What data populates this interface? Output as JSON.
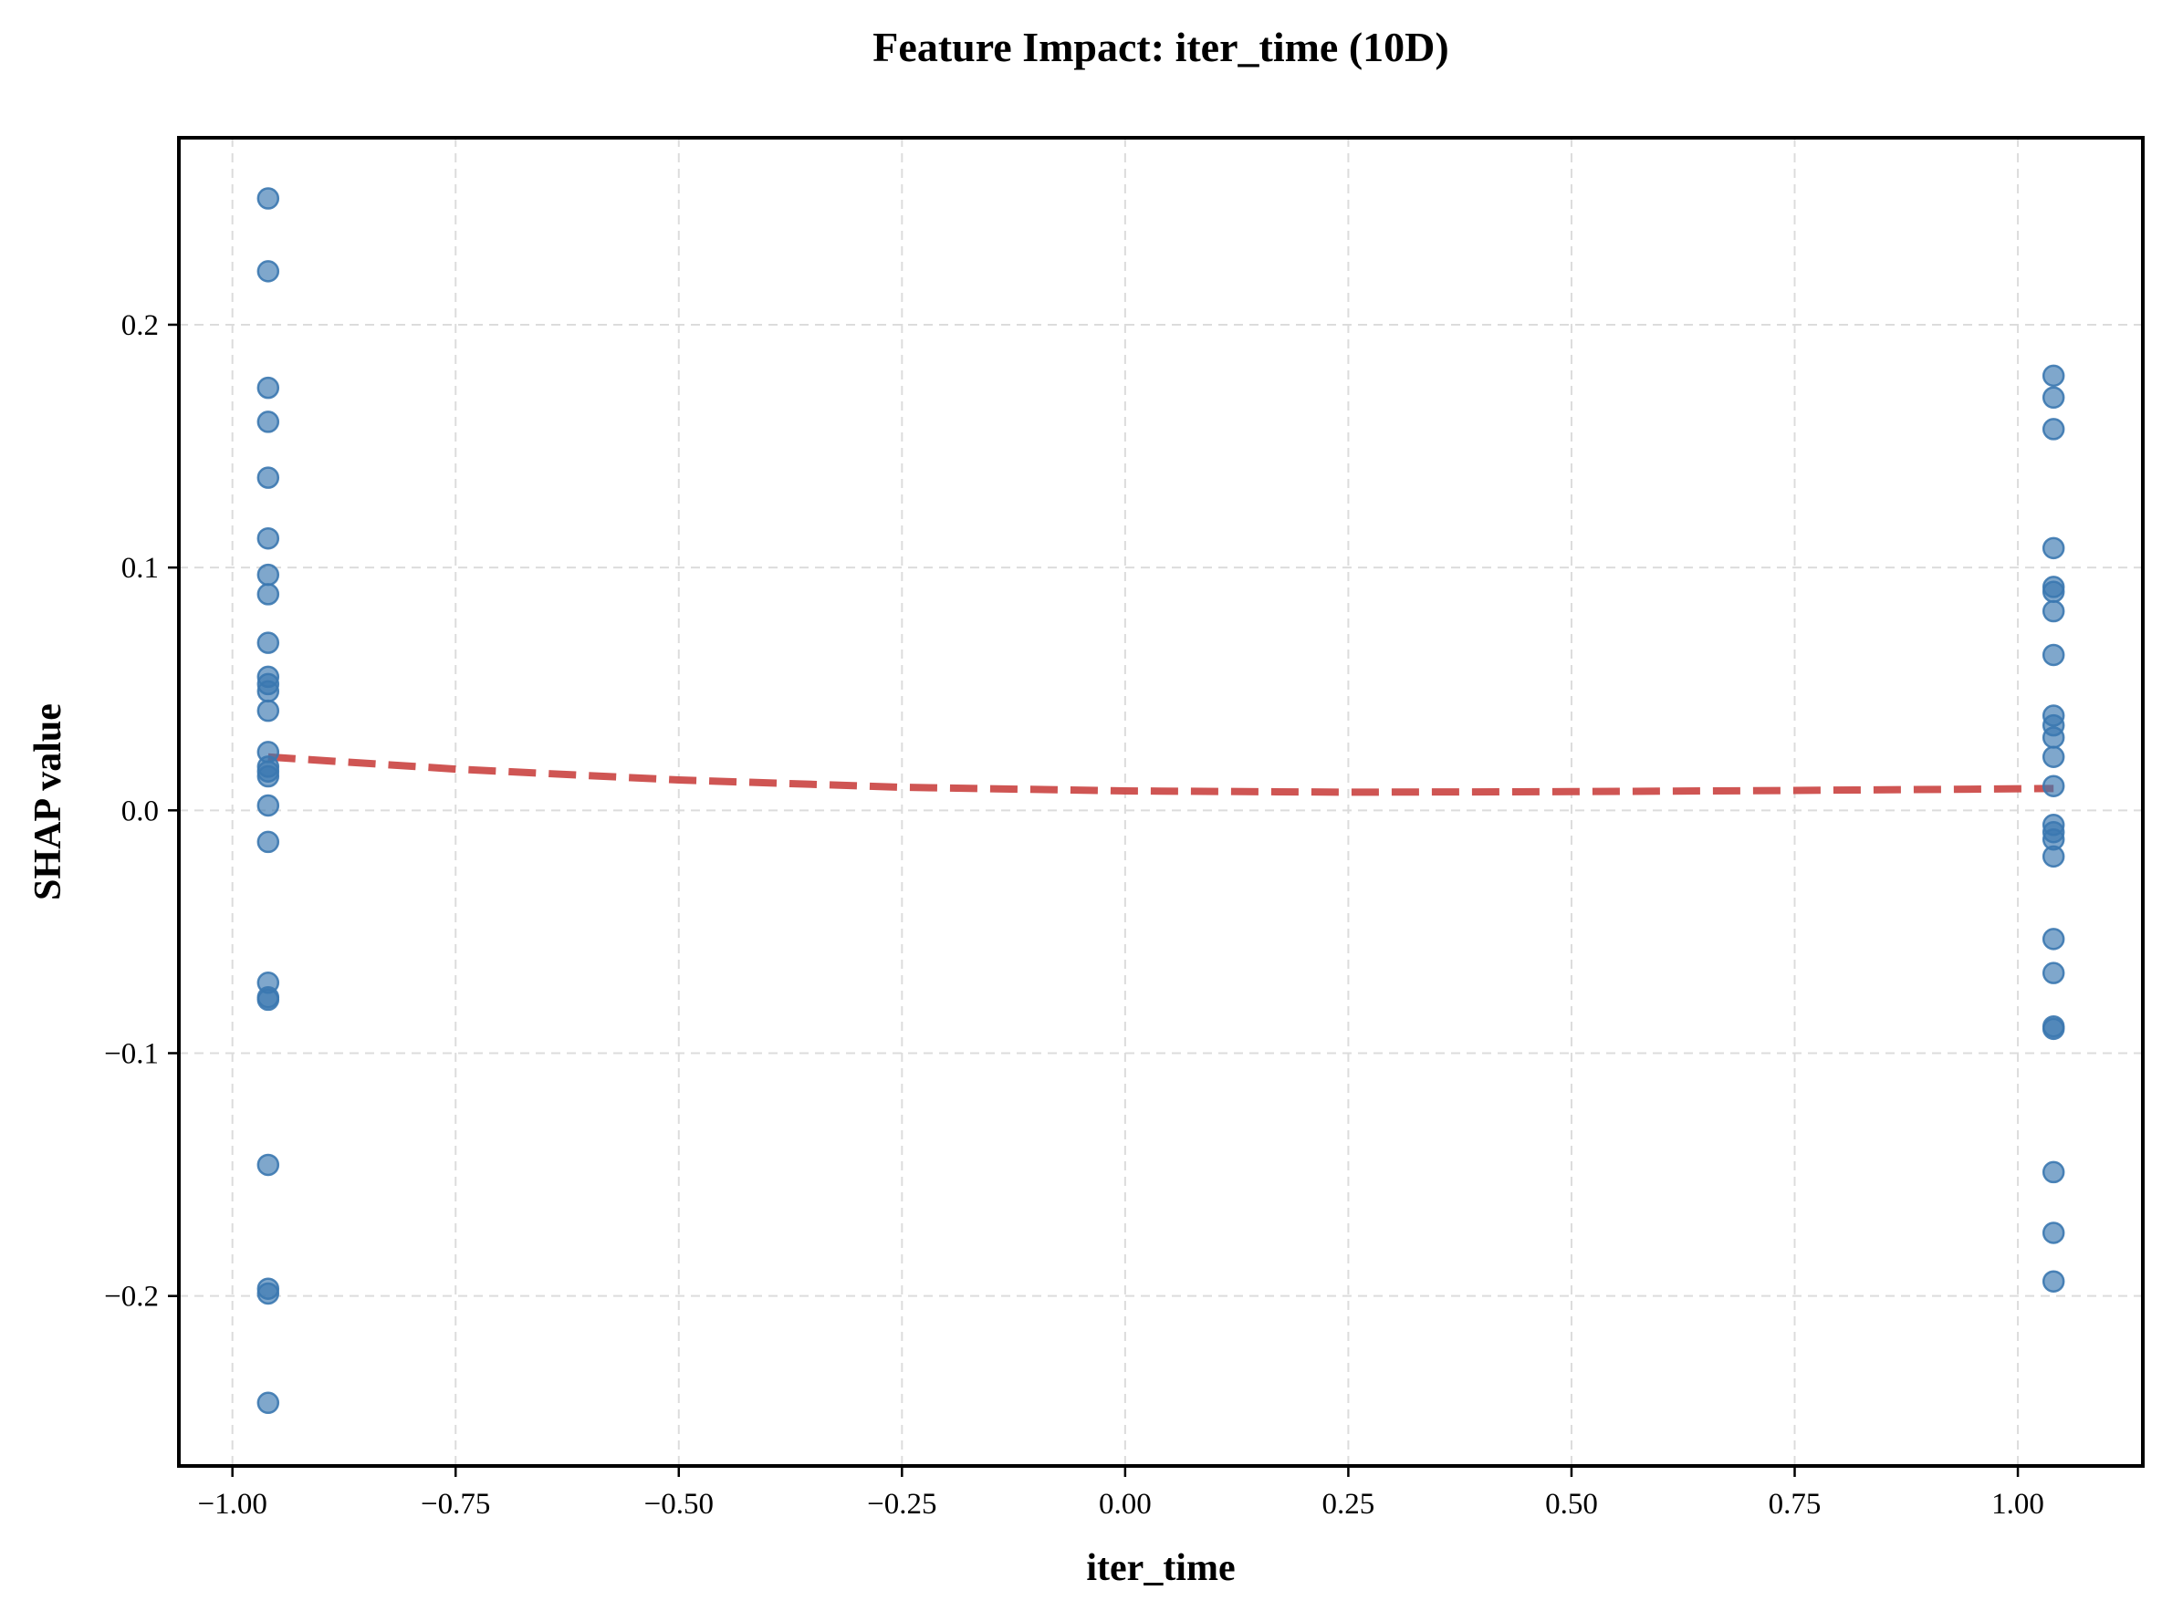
{
  "chart_data": {
    "type": "scatter",
    "title": "Feature Impact: iter_time (10D)",
    "xlabel": "iter_time",
    "ylabel": "SHAP value",
    "xlim": [
      -1.06,
      1.14
    ],
    "ylim": [
      -0.27,
      0.277
    ],
    "xticks": [
      -1.0,
      -0.75,
      -0.5,
      -0.25,
      0.0,
      0.25,
      0.5,
      0.75,
      1.0
    ],
    "xtick_labels": [
      "−1.00",
      "−0.75",
      "−0.50",
      "−0.25",
      "0.00",
      "0.25",
      "0.50",
      "0.75",
      "1.00"
    ],
    "yticks": [
      -0.2,
      -0.1,
      0.0,
      0.1,
      0.2
    ],
    "ytick_labels": [
      "−0.2",
      "−0.1",
      "0.0",
      "0.1",
      "0.2"
    ],
    "grid": true,
    "point_color": "#3b78b0",
    "trend_color": "#cc4c4a",
    "points": [
      {
        "x": -0.96,
        "y": 0.252
      },
      {
        "x": -0.96,
        "y": 0.222
      },
      {
        "x": -0.96,
        "y": 0.174
      },
      {
        "x": -0.96,
        "y": 0.16
      },
      {
        "x": -0.96,
        "y": 0.137
      },
      {
        "x": -0.96,
        "y": 0.112
      },
      {
        "x": -0.96,
        "y": 0.097
      },
      {
        "x": -0.96,
        "y": 0.089
      },
      {
        "x": -0.96,
        "y": 0.069
      },
      {
        "x": -0.96,
        "y": 0.055
      },
      {
        "x": -0.96,
        "y": 0.052
      },
      {
        "x": -0.96,
        "y": 0.049
      },
      {
        "x": -0.96,
        "y": 0.041
      },
      {
        "x": -0.96,
        "y": 0.024
      },
      {
        "x": -0.96,
        "y": 0.018
      },
      {
        "x": -0.96,
        "y": 0.016
      },
      {
        "x": -0.96,
        "y": 0.014
      },
      {
        "x": -0.96,
        "y": 0.002
      },
      {
        "x": -0.96,
        "y": -0.013
      },
      {
        "x": -0.96,
        "y": -0.071
      },
      {
        "x": -0.96,
        "y": -0.077
      },
      {
        "x": -0.96,
        "y": -0.078
      },
      {
        "x": -0.96,
        "y": -0.146
      },
      {
        "x": -0.96,
        "y": -0.197
      },
      {
        "x": -0.96,
        "y": -0.199
      },
      {
        "x": -0.96,
        "y": -0.244
      },
      {
        "x": 1.04,
        "y": 0.179
      },
      {
        "x": 1.04,
        "y": 0.17
      },
      {
        "x": 1.04,
        "y": 0.157
      },
      {
        "x": 1.04,
        "y": 0.108
      },
      {
        "x": 1.04,
        "y": 0.092
      },
      {
        "x": 1.04,
        "y": 0.09
      },
      {
        "x": 1.04,
        "y": 0.082
      },
      {
        "x": 1.04,
        "y": 0.064
      },
      {
        "x": 1.04,
        "y": 0.039
      },
      {
        "x": 1.04,
        "y": 0.035
      },
      {
        "x": 1.04,
        "y": 0.03
      },
      {
        "x": 1.04,
        "y": 0.022
      },
      {
        "x": 1.04,
        "y": 0.01
      },
      {
        "x": 1.04,
        "y": -0.006
      },
      {
        "x": 1.04,
        "y": -0.009
      },
      {
        "x": 1.04,
        "y": -0.012
      },
      {
        "x": 1.04,
        "y": -0.019
      },
      {
        "x": 1.04,
        "y": -0.053
      },
      {
        "x": 1.04,
        "y": -0.067
      },
      {
        "x": 1.04,
        "y": -0.089
      },
      {
        "x": 1.04,
        "y": -0.09
      },
      {
        "x": 1.04,
        "y": -0.149
      },
      {
        "x": 1.04,
        "y": -0.174
      },
      {
        "x": 1.04,
        "y": -0.194
      }
    ],
    "trend_line": {
      "style": "dashed",
      "x": [
        -0.96,
        -0.75,
        -0.5,
        -0.25,
        0.0,
        0.25,
        0.5,
        0.75,
        1.04
      ],
      "y": [
        0.022,
        0.017,
        0.0125,
        0.0095,
        0.008,
        0.0075,
        0.0077,
        0.0082,
        0.009
      ]
    }
  }
}
